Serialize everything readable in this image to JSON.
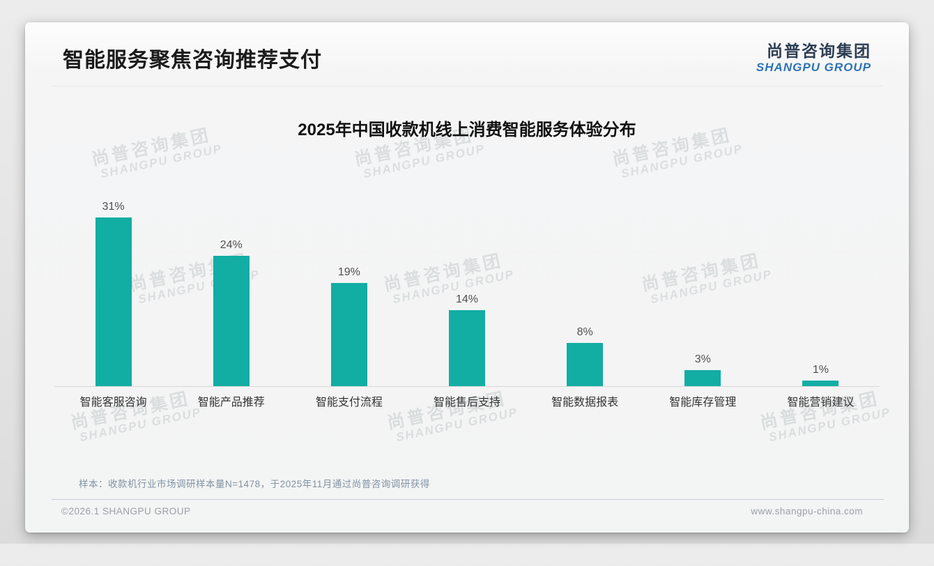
{
  "slide": {
    "header_title": "智能服务聚焦咨询推荐支付",
    "logo": {
      "zh": "尚普咨询集团",
      "en": "SHANGPU GROUP"
    },
    "watermark": {
      "zh": "尚普咨询集团",
      "en": "SHANGPU GROUP"
    },
    "note": "样本：收款机行业市场调研样本量N=1478，于2025年11月通过尚普咨询调研获得",
    "footer": {
      "copyright": "©2026.1 SHANGPU GROUP",
      "website": "www.shangpu-china.com"
    }
  },
  "colors": {
    "bar_teal": "#12ada3",
    "logo_navy": "#2d3e52",
    "logo_blue": "#2e73b4"
  },
  "chart_data": {
    "type": "bar",
    "title": "2025年中国收款机线上消费智能服务体验分布",
    "categories": [
      "智能客服咨询",
      "智能产品推荐",
      "智能支付流程",
      "智能售后支持",
      "智能数据报表",
      "智能库存管理",
      "智能营销建议"
    ],
    "values": [
      31,
      24,
      19,
      14,
      8,
      3,
      1
    ],
    "value_labels": [
      "31%",
      "24%",
      "19%",
      "14%",
      "8%",
      "3%",
      "1%"
    ],
    "unit": "%",
    "bar_color": "#12ada3",
    "ylim": [
      0,
      35
    ],
    "grid": false,
    "legend": false,
    "xlabel": "",
    "ylabel": ""
  }
}
